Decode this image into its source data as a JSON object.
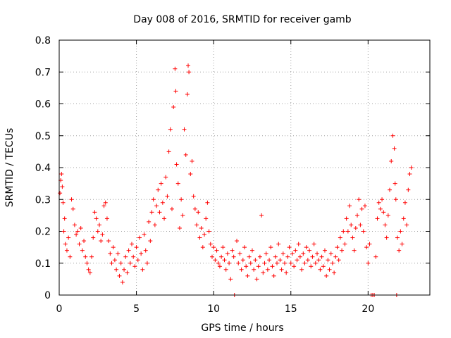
{
  "chart_data": {
    "type": "scatter",
    "title": "Day 008 of 2016, SRMTID for receiver gamb",
    "xlabel": "GPS time / hours",
    "ylabel": "SRMTID / TECUs",
    "xlim": [
      0,
      24
    ],
    "ylim": [
      0,
      0.8
    ],
    "x_ticks": [
      0,
      5,
      10,
      15,
      20
    ],
    "y_ticks": [
      0,
      0.1,
      0.2,
      0.3,
      0.4,
      0.5,
      0.6,
      0.7,
      0.8
    ],
    "x_tick_labels": [
      "0",
      "5",
      "10",
      "15",
      "20"
    ],
    "y_tick_labels": [
      "0",
      "0.1",
      "0.2",
      "0.3",
      "0.4",
      "0.5",
      "0.6",
      "0.7",
      "0.8"
    ],
    "grid": true,
    "marker": "plus",
    "color": "#ff0000",
    "series": [
      {
        "name": "SRMTID",
        "points": [
          [
            0.05,
            0.32
          ],
          [
            0.1,
            0.36
          ],
          [
            0.15,
            0.38
          ],
          [
            0.2,
            0.34
          ],
          [
            0.25,
            0.29
          ],
          [
            0.3,
            0.2
          ],
          [
            0.35,
            0.24
          ],
          [
            0.4,
            0.16
          ],
          [
            0.5,
            0.14
          ],
          [
            0.6,
            0.18
          ],
          [
            0.7,
            0.12
          ],
          [
            0.8,
            0.3
          ],
          [
            0.9,
            0.27
          ],
          [
            1.0,
            0.22
          ],
          [
            1.1,
            0.19
          ],
          [
            1.2,
            0.2
          ],
          [
            1.3,
            0.16
          ],
          [
            1.4,
            0.21
          ],
          [
            1.5,
            0.14
          ],
          [
            1.6,
            0.17
          ],
          [
            1.7,
            0.12
          ],
          [
            1.8,
            0.1
          ],
          [
            1.9,
            0.08
          ],
          [
            2.0,
            0.07
          ],
          [
            2.1,
            0.12
          ],
          [
            2.2,
            0.18
          ],
          [
            2.3,
            0.26
          ],
          [
            2.4,
            0.24
          ],
          [
            2.5,
            0.2
          ],
          [
            2.6,
            0.22
          ],
          [
            2.7,
            0.17
          ],
          [
            2.8,
            0.19
          ],
          [
            2.9,
            0.28
          ],
          [
            3.0,
            0.29
          ],
          [
            3.1,
            0.24
          ],
          [
            3.2,
            0.17
          ],
          [
            3.3,
            0.13
          ],
          [
            3.4,
            0.1
          ],
          [
            3.5,
            0.15
          ],
          [
            3.6,
            0.11
          ],
          [
            3.7,
            0.08
          ],
          [
            3.8,
            0.13
          ],
          [
            3.9,
            0.06
          ],
          [
            4.0,
            0.1
          ],
          [
            4.1,
            0.04
          ],
          [
            4.2,
            0.08
          ],
          [
            4.3,
            0.12
          ],
          [
            4.4,
            0.07
          ],
          [
            4.5,
            0.14
          ],
          [
            4.6,
            0.1
          ],
          [
            4.7,
            0.16
          ],
          [
            4.8,
            0.12
          ],
          [
            4.9,
            0.09
          ],
          [
            5.0,
            0.15
          ],
          [
            5.1,
            0.11
          ],
          [
            5.2,
            0.18
          ],
          [
            5.3,
            0.13
          ],
          [
            5.4,
            0.08
          ],
          [
            5.5,
            0.19
          ],
          [
            5.6,
            0.14
          ],
          [
            5.7,
            0.1
          ],
          [
            5.8,
            0.23
          ],
          [
            5.9,
            0.17
          ],
          [
            6.0,
            0.26
          ],
          [
            6.1,
            0.3
          ],
          [
            6.2,
            0.22
          ],
          [
            6.3,
            0.28
          ],
          [
            6.4,
            0.33
          ],
          [
            6.5,
            0.26
          ],
          [
            6.6,
            0.35
          ],
          [
            6.7,
            0.29
          ],
          [
            6.8,
            0.24
          ],
          [
            6.9,
            0.37
          ],
          [
            7.0,
            0.31
          ],
          [
            7.1,
            0.45
          ],
          [
            7.2,
            0.52
          ],
          [
            7.3,
            0.27
          ],
          [
            7.4,
            0.59
          ],
          [
            7.5,
            0.71
          ],
          [
            7.55,
            0.64
          ],
          [
            7.6,
            0.41
          ],
          [
            7.7,
            0.35
          ],
          [
            7.8,
            0.21
          ],
          [
            7.9,
            0.3
          ],
          [
            8.0,
            0.25
          ],
          [
            8.1,
            0.52
          ],
          [
            8.2,
            0.44
          ],
          [
            8.3,
            0.63
          ],
          [
            8.35,
            0.72
          ],
          [
            8.4,
            0.7
          ],
          [
            8.5,
            0.38
          ],
          [
            8.6,
            0.42
          ],
          [
            8.7,
            0.31
          ],
          [
            8.8,
            0.27
          ],
          [
            8.9,
            0.22
          ],
          [
            9.0,
            0.26
          ],
          [
            9.1,
            0.18
          ],
          [
            9.2,
            0.21
          ],
          [
            9.3,
            0.15
          ],
          [
            9.4,
            0.19
          ],
          [
            9.5,
            0.24
          ],
          [
            9.6,
            0.29
          ],
          [
            9.7,
            0.2
          ],
          [
            9.8,
            0.16
          ],
          [
            9.9,
            0.12
          ],
          [
            10.0,
            0.15
          ],
          [
            10.1,
            0.11
          ],
          [
            10.2,
            0.14
          ],
          [
            10.3,
            0.1
          ],
          [
            10.4,
            0.09
          ],
          [
            10.5,
            0.12
          ],
          [
            10.6,
            0.15
          ],
          [
            10.7,
            0.11
          ],
          [
            10.8,
            0.08
          ],
          [
            10.9,
            0.13
          ],
          [
            11.0,
            0.1
          ],
          [
            11.1,
            0.05
          ],
          [
            11.2,
            0.14
          ],
          [
            11.3,
            0.12
          ],
          [
            11.35,
            0.0
          ],
          [
            11.5,
            0.17
          ],
          [
            11.6,
            0.1
          ],
          [
            11.7,
            0.13
          ],
          [
            11.8,
            0.08
          ],
          [
            11.9,
            0.11
          ],
          [
            12.0,
            0.15
          ],
          [
            12.1,
            0.09
          ],
          [
            12.2,
            0.06
          ],
          [
            12.3,
            0.12
          ],
          [
            12.4,
            0.1
          ],
          [
            12.5,
            0.14
          ],
          [
            12.6,
            0.08
          ],
          [
            12.7,
            0.11
          ],
          [
            12.8,
            0.05
          ],
          [
            12.9,
            0.09
          ],
          [
            13.0,
            0.12
          ],
          [
            13.1,
            0.25
          ],
          [
            13.2,
            0.07
          ],
          [
            13.3,
            0.1
          ],
          [
            13.4,
            0.13
          ],
          [
            13.5,
            0.08
          ],
          [
            13.6,
            0.11
          ],
          [
            13.7,
            0.15
          ],
          [
            13.8,
            0.09
          ],
          [
            13.9,
            0.06
          ],
          [
            14.0,
            0.12
          ],
          [
            14.1,
            0.1
          ],
          [
            14.2,
            0.16
          ],
          [
            14.3,
            0.11
          ],
          [
            14.4,
            0.08
          ],
          [
            14.5,
            0.13
          ],
          [
            14.6,
            0.1
          ],
          [
            14.7,
            0.07
          ],
          [
            14.8,
            0.12
          ],
          [
            14.9,
            0.15
          ],
          [
            15.0,
            0.1
          ],
          [
            15.1,
            0.13
          ],
          [
            15.2,
            0.09
          ],
          [
            15.3,
            0.14
          ],
          [
            15.4,
            0.11
          ],
          [
            15.5,
            0.16
          ],
          [
            15.6,
            0.12
          ],
          [
            15.7,
            0.08
          ],
          [
            15.8,
            0.13
          ],
          [
            15.9,
            0.1
          ],
          [
            16.0,
            0.15
          ],
          [
            16.1,
            0.11
          ],
          [
            16.2,
            0.14
          ],
          [
            16.3,
            0.09
          ],
          [
            16.4,
            0.12
          ],
          [
            16.5,
            0.16
          ],
          [
            16.6,
            0.1
          ],
          [
            16.7,
            0.13
          ],
          [
            16.8,
            0.11
          ],
          [
            16.9,
            0.08
          ],
          [
            17.0,
            0.12
          ],
          [
            17.1,
            0.09
          ],
          [
            17.2,
            0.14
          ],
          [
            17.3,
            0.06
          ],
          [
            17.4,
            0.11
          ],
          [
            17.5,
            0.08
          ],
          [
            17.6,
            0.13
          ],
          [
            17.7,
            0.1
          ],
          [
            17.8,
            0.07
          ],
          [
            17.9,
            0.12
          ],
          [
            18.0,
            0.15
          ],
          [
            18.1,
            0.11
          ],
          [
            18.2,
            0.18
          ],
          [
            18.3,
            0.14
          ],
          [
            18.4,
            0.2
          ],
          [
            18.5,
            0.16
          ],
          [
            18.6,
            0.24
          ],
          [
            18.7,
            0.2
          ],
          [
            18.8,
            0.28
          ],
          [
            18.9,
            0.22
          ],
          [
            19.0,
            0.18
          ],
          [
            19.1,
            0.14
          ],
          [
            19.2,
            0.21
          ],
          [
            19.3,
            0.25
          ],
          [
            19.4,
            0.3
          ],
          [
            19.5,
            0.22
          ],
          [
            19.6,
            0.27
          ],
          [
            19.7,
            0.2
          ],
          [
            19.8,
            0.28
          ],
          [
            19.9,
            0.15
          ],
          [
            20.0,
            0.1
          ],
          [
            20.1,
            0.16
          ],
          [
            20.2,
            0.0
          ],
          [
            20.3,
            0.0
          ],
          [
            20.4,
            0.0
          ],
          [
            20.5,
            0.12
          ],
          [
            20.6,
            0.24
          ],
          [
            20.7,
            0.29
          ],
          [
            20.8,
            0.27
          ],
          [
            20.9,
            0.3
          ],
          [
            21.0,
            0.26
          ],
          [
            21.1,
            0.22
          ],
          [
            21.2,
            0.18
          ],
          [
            21.3,
            0.25
          ],
          [
            21.4,
            0.33
          ],
          [
            21.5,
            0.42
          ],
          [
            21.6,
            0.5
          ],
          [
            21.7,
            0.46
          ],
          [
            21.75,
            0.35
          ],
          [
            21.8,
            0.3
          ],
          [
            21.85,
            0.0
          ],
          [
            21.9,
            0.18
          ],
          [
            22.0,
            0.14
          ],
          [
            22.1,
            0.2
          ],
          [
            22.2,
            0.16
          ],
          [
            22.3,
            0.24
          ],
          [
            22.4,
            0.29
          ],
          [
            22.5,
            0.22
          ],
          [
            22.6,
            0.33
          ],
          [
            22.7,
            0.38
          ],
          [
            22.8,
            0.4
          ]
        ]
      }
    ]
  }
}
